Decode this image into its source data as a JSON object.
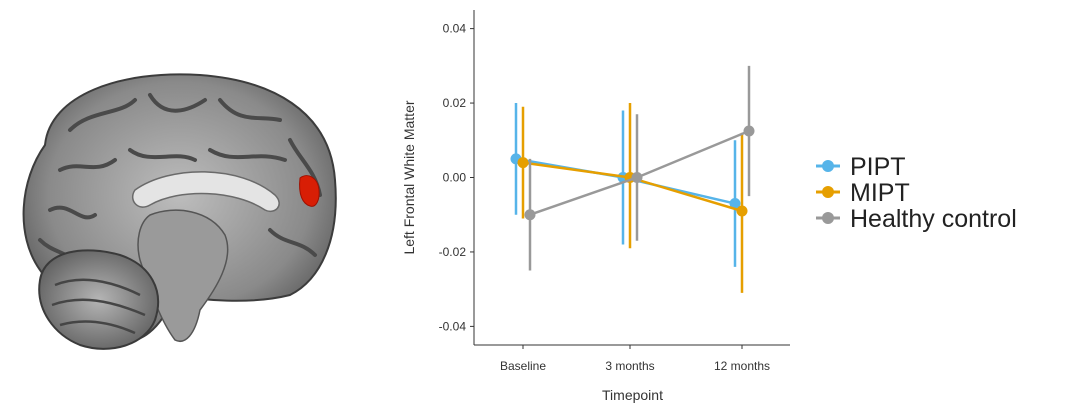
{
  "figure": {
    "brain_image": "sagittal-brain-slice",
    "highlight_region_color": "#d81e05"
  },
  "chart_data": {
    "type": "line",
    "xlabel": "Timepoint",
    "ylabel": "Left Frontal White Matter",
    "categories": [
      "Baseline",
      "3 months",
      "12 months"
    ],
    "ylim": [
      -0.045,
      0.045
    ],
    "yticks": [
      -0.04,
      -0.02,
      0.0,
      0.02,
      0.04
    ],
    "ytick_labels": [
      "-0.04",
      "-0.02",
      "0.00",
      "0.02",
      "0.04"
    ],
    "grid": false,
    "legend_position": "right",
    "error_bars": true,
    "series": [
      {
        "name": "PIPT",
        "color": "#56b4e9",
        "values": [
          0.005,
          0.0,
          -0.007
        ],
        "lower": [
          -0.01,
          -0.018,
          -0.024
        ],
        "upper": [
          0.02,
          0.018,
          0.01
        ]
      },
      {
        "name": "MIPT",
        "color": "#e69f00",
        "values": [
          0.004,
          0.0,
          -0.009
        ],
        "lower": [
          -0.011,
          -0.019,
          -0.031
        ],
        "upper": [
          0.019,
          0.02,
          0.012
        ]
      },
      {
        "name": "Healthy control",
        "color": "#999999",
        "values": [
          -0.01,
          0.0,
          0.0125
        ],
        "lower": [
          -0.025,
          -0.017,
          -0.005
        ],
        "upper": [
          0.005,
          0.017,
          0.03
        ]
      }
    ]
  }
}
